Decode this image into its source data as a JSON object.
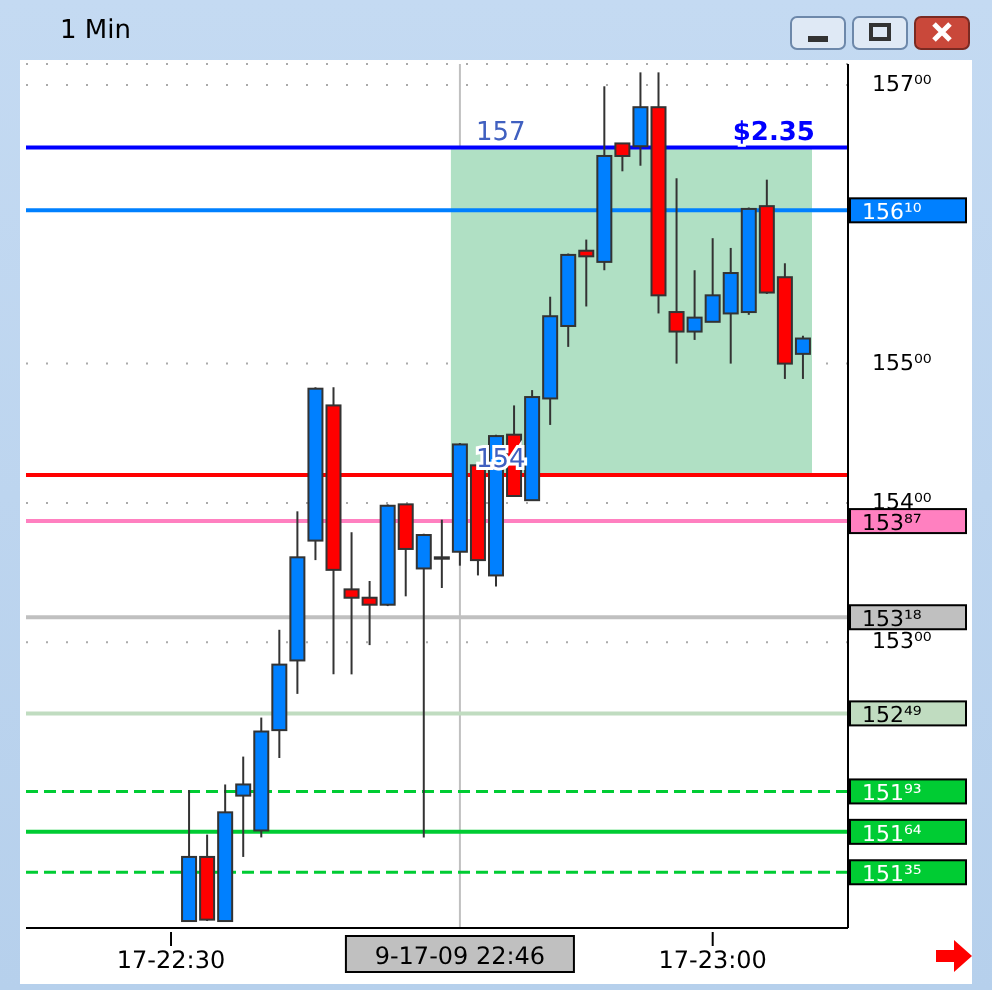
{
  "chart_data": {
    "type": "candlestick",
    "title": "1 Min",
    "categories": [
      "17-22:30",
      null,
      null,
      null,
      null,
      null,
      null,
      null,
      null,
      null,
      null,
      null,
      null,
      null,
      null,
      null,
      "9-17-09 22:46",
      null,
      null,
      null,
      null,
      null,
      null,
      null,
      null,
      null,
      null,
      null,
      null,
      null,
      "17-23:00",
      null,
      null,
      null,
      null,
      null
    ],
    "ohlc": [
      null,
      [
        151.0,
        151.94,
        151.0,
        151.46
      ],
      [
        151.46,
        151.62,
        151.0,
        151.01
      ],
      [
        151.0,
        151.98,
        151.0,
        151.78
      ],
      [
        151.9,
        152.18,
        151.46,
        151.98
      ],
      [
        151.65,
        152.46,
        151.6,
        152.36
      ],
      [
        152.37,
        153.09,
        152.17,
        152.84
      ],
      [
        152.87,
        153.94,
        152.63,
        153.61
      ],
      [
        153.73,
        154.83,
        153.59,
        154.82
      ],
      [
        154.7,
        154.83,
        152.77,
        153.52
      ],
      [
        153.38,
        153.79,
        152.77,
        153.32
      ],
      [
        153.32,
        153.44,
        152.98,
        153.27
      ],
      [
        153.27,
        153.99,
        153.26,
        153.98
      ],
      [
        153.99,
        153.99,
        153.33,
        153.67
      ],
      [
        153.53,
        153.78,
        151.6,
        153.77
      ],
      [
        153.61,
        153.88,
        153.39,
        153.6
      ],
      [
        153.65,
        154.43,
        153.55,
        154.42
      ],
      [
        154.27,
        154.27,
        153.48,
        153.59
      ],
      [
        153.48,
        154.49,
        153.4,
        154.48
      ],
      [
        154.49,
        154.7,
        154.05,
        154.05
      ],
      [
        154.02,
        154.81,
        154.02,
        154.76
      ],
      [
        154.75,
        155.48,
        154.56,
        155.34
      ],
      [
        155.27,
        155.79,
        155.12,
        155.78
      ],
      [
        155.81,
        155.89,
        155.41,
        155.77
      ],
      [
        155.73,
        156.99,
        155.67,
        156.49
      ],
      [
        156.58,
        156.58,
        156.38,
        156.49
      ],
      [
        156.56,
        157.09,
        156.42,
        156.84
      ],
      [
        156.84,
        157.09,
        155.36,
        155.49
      ],
      [
        155.37,
        156.33,
        155.0,
        155.23
      ],
      [
        155.23,
        155.67,
        155.17,
        155.33
      ],
      [
        155.3,
        155.9,
        155.3,
        155.49
      ],
      [
        155.36,
        155.83,
        155.0,
        155.65
      ],
      [
        155.37,
        156.12,
        155.35,
        156.11
      ],
      [
        156.13,
        156.32,
        155.5,
        155.51
      ],
      [
        155.62,
        155.72,
        154.89,
        155.0
      ],
      [
        155.07,
        155.2,
        154.89,
        155.18
      ]
    ],
    "colors": [
      null,
      "#0080ff",
      "#ff0000",
      "#0080ff",
      "#0080ff",
      "#0080ff",
      "#0080ff",
      "#0080ff",
      "#0080ff",
      "#ff0000",
      "#ff0000",
      "#ff0000",
      "#0080ff",
      "#ff0000",
      "#0080ff",
      "#ff0000",
      "#0080ff",
      "#ff0000",
      "#0080ff",
      "#ff0000",
      "#0080ff",
      "#0080ff",
      "#0080ff",
      "#ff0000",
      "#0080ff",
      "#ff0000",
      "#0080ff",
      "#ff0000",
      "#ff0000",
      "#0080ff",
      "#0080ff",
      "#0080ff",
      "#0080ff",
      "#ff0000",
      "#ff0000",
      "#0080ff"
    ],
    "ylim": [
      150.95,
      157.15
    ],
    "yticks": [
      {
        "value": 157,
        "label": "157⁰⁰"
      },
      {
        "value": 155,
        "label": "155⁰⁰"
      },
      {
        "value": 154,
        "label": "154⁰⁰"
      },
      {
        "value": 153,
        "label": "153⁰⁰"
      }
    ],
    "grid": true,
    "ref_lines": [
      {
        "axis": "x",
        "value": "9-17-09 22:46",
        "color": "#c0c0c0"
      },
      {
        "axis": "y",
        "value": 156.55,
        "color": "#0000ff"
      },
      {
        "axis": "y",
        "value": 154.2,
        "color": "#ff0000"
      },
      {
        "axis": "y",
        "value": 156.1,
        "label": "156¹⁰",
        "color": "#0080ff"
      },
      {
        "axis": "y",
        "value": 153.87,
        "label": "153⁸⁷",
        "color": "#ff80c0"
      },
      {
        "axis": "y",
        "value": 153.18,
        "label": "153¹⁸",
        "color": "#c0c0c0"
      },
      {
        "axis": "y",
        "value": 152.49,
        "label": "152⁴⁹",
        "color": "#c0dcc0"
      },
      {
        "axis": "y",
        "value": 151.93,
        "label": "151⁹³",
        "color": "#00cc33",
        "line_style": "dashed"
      },
      {
        "axis": "y",
        "value": 151.64,
        "label": "151⁶⁴",
        "color": "#00cc33"
      },
      {
        "axis": "y",
        "value": 151.35,
        "label": "151³⁵",
        "color": "#00cc33",
        "line_style": "dashed"
      }
    ],
    "bands": [
      {
        "axis": "y",
        "from": 154.2,
        "to": 156.55,
        "color": "#b0e0c4"
      }
    ],
    "annotations": [
      {
        "text": "$2.35",
        "y": 156.55
      },
      {
        "text": "157",
        "x": "9-17-09 22:46",
        "y": 156.55
      },
      {
        "text": "154",
        "x": "9-17-09 22:46",
        "y": 154.2
      }
    ]
  }
}
